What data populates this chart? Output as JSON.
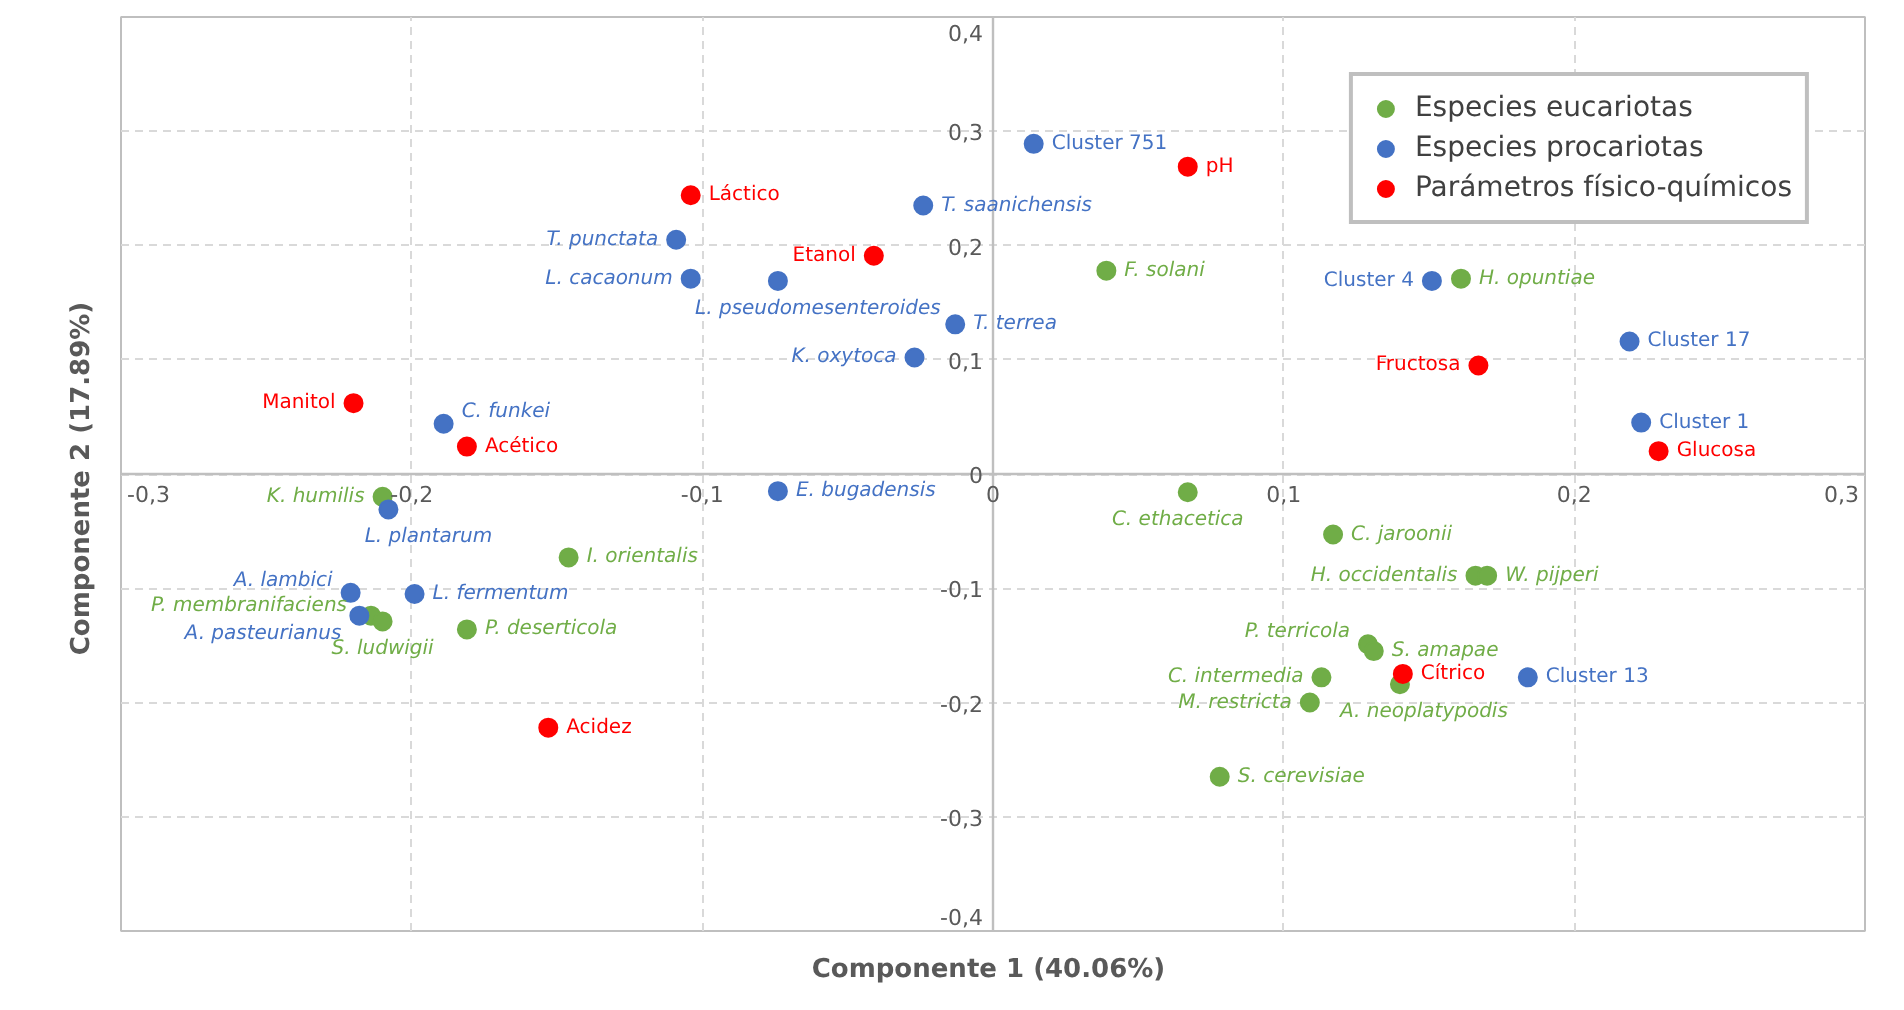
{
  "chart_data": {
    "type": "scatter",
    "xlabel": "Componente  1 (40.06%)",
    "ylabel": "Componente  2 (17.89%)",
    "xlim": [
      -0.3,
      0.3
    ],
    "ylim": [
      -0.4,
      0.4
    ],
    "xticks": [
      {
        "value": -0.3,
        "label": "-0,3"
      },
      {
        "value": -0.2,
        "label": "-0,2"
      },
      {
        "value": -0.1,
        "label": "-0,1"
      },
      0,
      {
        "value": 0.1,
        "label": "0,1"
      },
      {
        "value": 0.2,
        "label": "0,2"
      },
      {
        "value": 0.3,
        "label": "0,3"
      }
    ],
    "yticks": [
      {
        "value": -0.4,
        "label": "-0,4"
      },
      {
        "value": -0.3,
        "label": "-0,3"
      },
      {
        "value": -0.2,
        "label": "-0,2"
      },
      {
        "value": -0.1,
        "label": "-0,1"
      },
      0,
      {
        "value": 0.1,
        "label": "0,1"
      },
      {
        "value": 0.2,
        "label": "0,2"
      },
      {
        "value": 0.3,
        "label": "0,3"
      },
      {
        "value": 0.4,
        "label": "0,4"
      }
    ],
    "grid": true,
    "legend": "top right",
    "marker": "circle",
    "series": [
      {
        "name": "Especies eucariotas",
        "color": "#70ad47",
        "x": [
          -0.21,
          -0.146,
          -0.214,
          -0.21,
          -0.181,
          0.039,
          0.161,
          0.067,
          0.117,
          0.166,
          0.17,
          0.129,
          0.131,
          0.113,
          0.14,
          0.109,
          0.078
        ],
        "values": [
          -0.02,
          -0.073,
          -0.124,
          -0.129,
          -0.136,
          0.178,
          0.171,
          -0.016,
          -0.053,
          -0.089,
          -0.089,
          -0.149,
          -0.155,
          -0.178,
          -0.184,
          -0.2,
          -0.265
        ],
        "value_labels": [
          "K. humilis",
          "I. orientalis",
          "P. membranifaciens",
          "S. ludwigii",
          "P. deserticola",
          "F. solani",
          "H. opuntiae",
          "C. ethacetica",
          "C. jaroonii",
          "H. occidentalis",
          "W. pijperi",
          "P. terricola",
          "S. amapae",
          "C. intermedia",
          "A. neoplatypodis",
          "M. restricta",
          "S. cerevisiae"
        ]
      },
      {
        "name": "Especies procariotas",
        "color": "#4472c4",
        "x": [
          -0.109,
          -0.104,
          -0.074,
          -0.024,
          -0.013,
          -0.027,
          -0.189,
          -0.074,
          -0.208,
          -0.221,
          -0.199,
          -0.218,
          0.014,
          0.151,
          0.219,
          0.223,
          0.184
        ],
        "values": [
          0.205,
          0.171,
          0.169,
          0.235,
          0.131,
          0.102,
          0.044,
          -0.015,
          -0.031,
          -0.104,
          -0.105,
          -0.124,
          0.289,
          0.169,
          0.116,
          0.045,
          -0.178
        ],
        "value_labels": [
          "T. punctata",
          "L. cacaonum",
          "L. pseudomesenteroides",
          "T. saanichensis",
          "T. terrea",
          "K. oxytoca",
          "C. funkei",
          "E. bugadensis",
          "L. plantarum",
          "A. lambici",
          "L. fermentum",
          "A. pasteurianus",
          "Cluster 751",
          "Cluster 4",
          "Cluster 17",
          "Cluster 1",
          "Cluster 13"
        ]
      },
      {
        "name": "Parámetros físico-químicos",
        "color": "#ff0000",
        "x": [
          -0.104,
          -0.041,
          -0.22,
          -0.181,
          -0.153,
          0.067,
          0.167,
          0.229,
          0.141
        ],
        "values": [
          0.244,
          0.191,
          0.062,
          0.024,
          -0.222,
          0.269,
          0.095,
          0.02,
          -0.175
        ],
        "value_labels": [
          "Láctico",
          "Etanol",
          "Manitol",
          "Acético",
          "Acidez",
          "pH",
          "Fructosa",
          "Glucosa",
          "Cítrico"
        ]
      }
    ]
  }
}
